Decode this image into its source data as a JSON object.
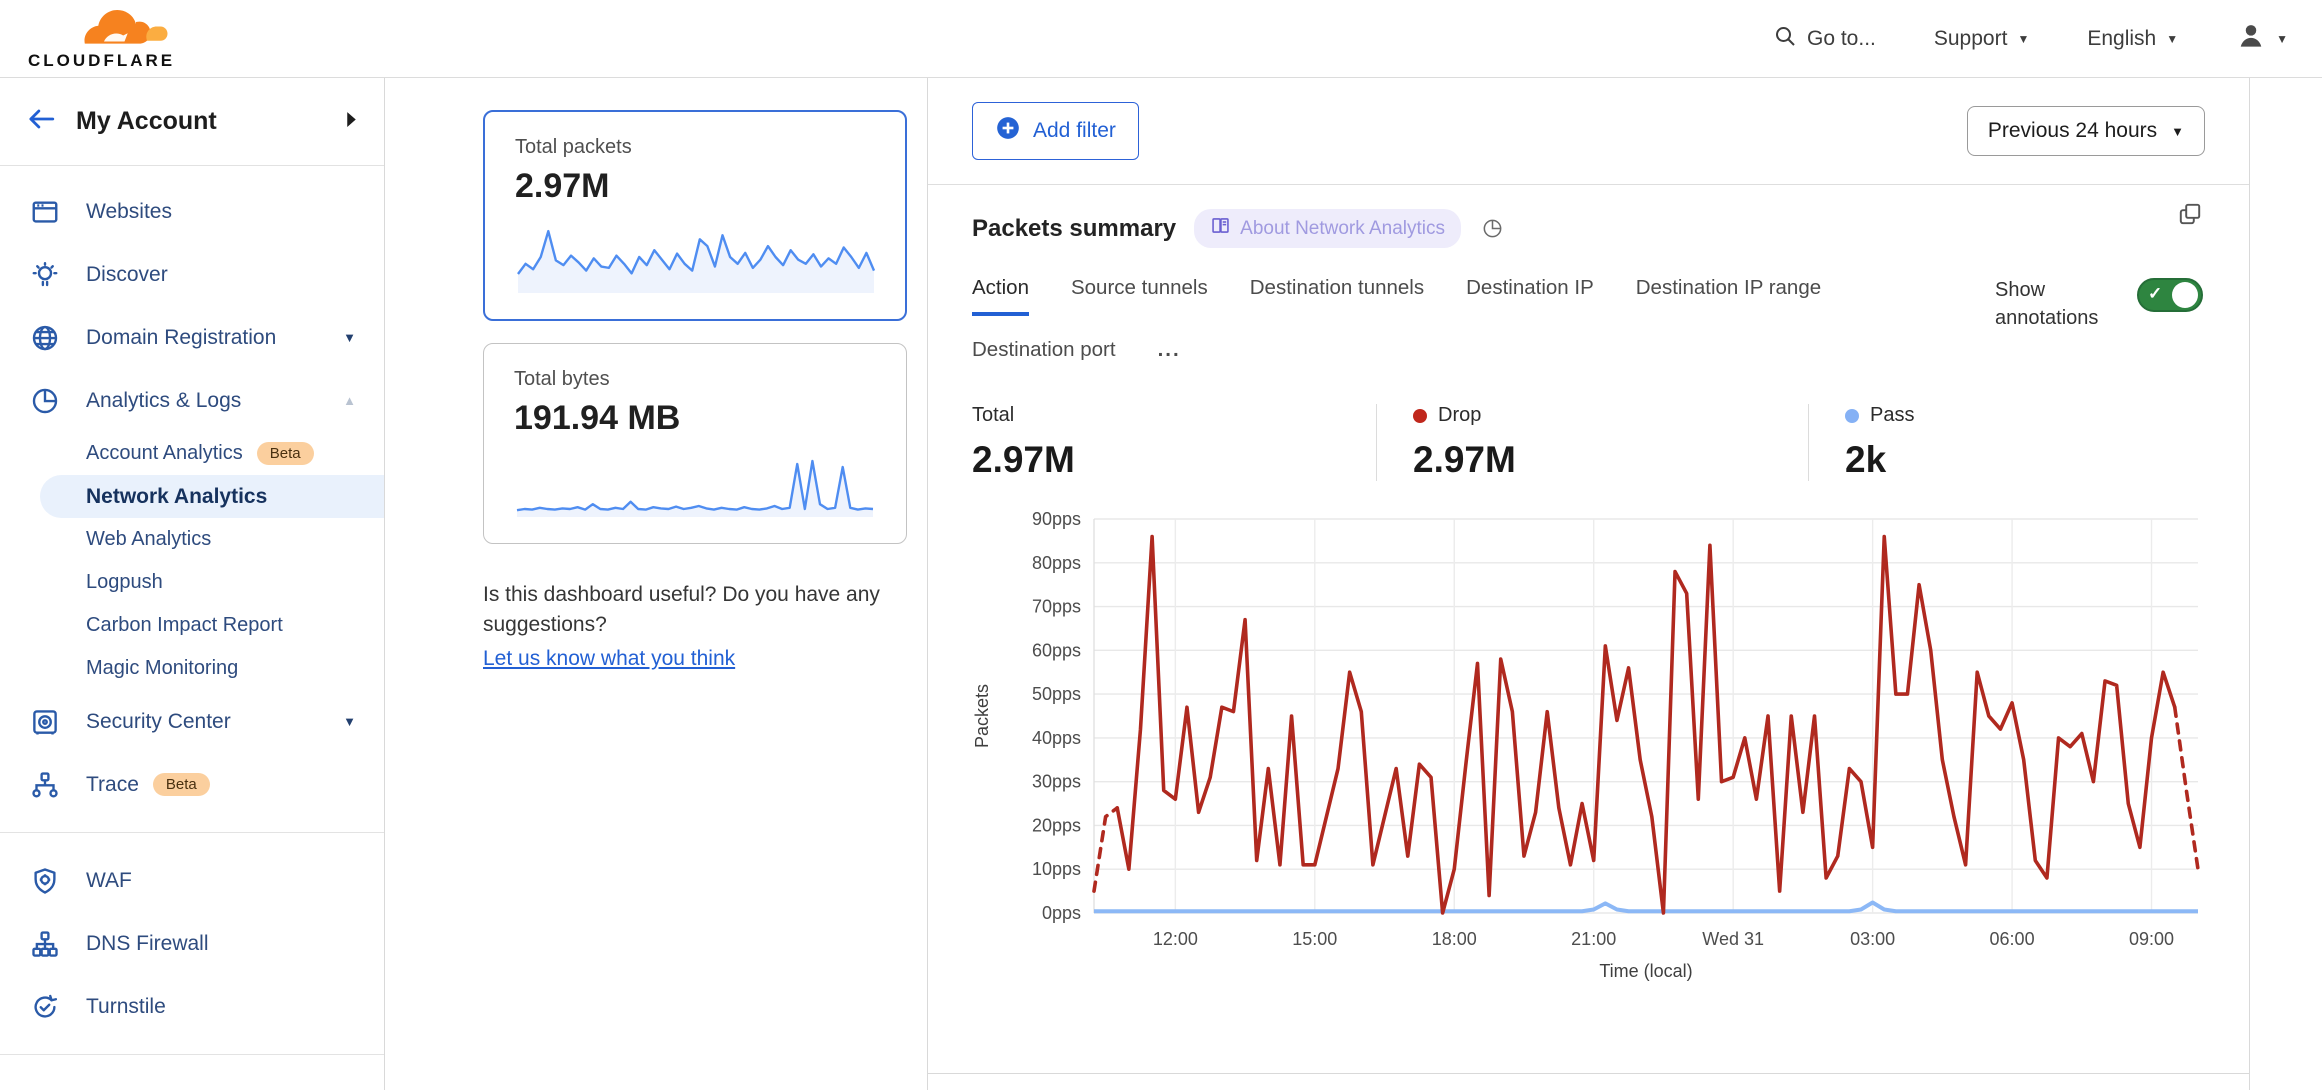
{
  "header": {
    "logo_text": "CLOUDFLARE",
    "search_label": "Go to...",
    "support_label": "Support",
    "language_label": "English"
  },
  "sidebar": {
    "account_label": "My Account",
    "beta_label": "Beta",
    "items": [
      {
        "type": "item",
        "label": "Websites",
        "icon": "browser"
      },
      {
        "type": "item",
        "label": "Discover",
        "icon": "lightbulb"
      },
      {
        "type": "item",
        "label": "Domain Registration",
        "icon": "globe",
        "chevron": "down"
      },
      {
        "type": "item",
        "label": "Analytics & Logs",
        "icon": "pie",
        "chevron": "up"
      },
      {
        "type": "sub",
        "label": "Account Analytics",
        "beta": true
      },
      {
        "type": "sub",
        "label": "Network Analytics",
        "active": true
      },
      {
        "type": "sub",
        "label": "Web Analytics"
      },
      {
        "type": "sub",
        "label": "Logpush"
      },
      {
        "type": "sub",
        "label": "Carbon Impact Report"
      },
      {
        "type": "sub",
        "label": "Magic Monitoring"
      },
      {
        "type": "item",
        "label": "Security Center",
        "icon": "safe",
        "chevron": "down"
      },
      {
        "type": "item",
        "label": "Trace",
        "icon": "trace",
        "beta": true
      },
      {
        "type": "divider"
      },
      {
        "type": "item",
        "label": "WAF",
        "icon": "shield"
      },
      {
        "type": "item",
        "label": "DNS Firewall",
        "icon": "dns"
      },
      {
        "type": "item",
        "label": "Turnstile",
        "icon": "turnstile"
      },
      {
        "type": "divider"
      },
      {
        "type": "item",
        "label": "",
        "icon": "spark",
        "partial": true
      }
    ]
  },
  "summary_cards": [
    {
      "title": "Total packets",
      "value": "2.97M",
      "selected": true
    },
    {
      "title": "Total bytes",
      "value": "191.94 MB",
      "selected": false
    }
  ],
  "feedback": {
    "question": "Is this dashboard useful? Do you have any suggestions?",
    "link": "Let us know what you think"
  },
  "main": {
    "add_filter_label": "Add filter",
    "time_range_label": "Previous 24 hours",
    "panel": {
      "title": "Packets summary",
      "about_badge": "About Network Analytics",
      "show_annotations_label": "Show annotations",
      "tabs": [
        "Action",
        "Source tunnels",
        "Destination tunnels",
        "Destination IP",
        "Destination IP range",
        "Destination port"
      ],
      "active_tab": "Action",
      "tabs_overflow": "...",
      "totals": [
        {
          "label": "Total",
          "value": "2.97M",
          "dot_color": ""
        },
        {
          "label": "Drop",
          "value": "2.97M",
          "dot_color": "#c0271c"
        },
        {
          "label": "Pass",
          "value": "2k",
          "dot_color": "#85b1f5"
        }
      ]
    }
  },
  "colors": {
    "accent_blue": "#2260d4",
    "drop_red": "#b0291f",
    "pass_blue": "#8cb8f6",
    "toggle_green": "#2e8540",
    "selected_card_border": "#3a6fd8",
    "beta_badge_bg": "#fbcf9e",
    "about_pill_bg": "#eeecfb"
  },
  "chart_data": [
    {
      "id": "packets_summary",
      "type": "line",
      "title": "Packets summary",
      "xlabel": "Time (local)",
      "ylabel": "Packets",
      "ylim": [
        0,
        90
      ],
      "grid": true,
      "y_ticks": [
        "0pps",
        "10pps",
        "20pps",
        "30pps",
        "40pps",
        "50pps",
        "60pps",
        "70pps",
        "80pps",
        "90pps"
      ],
      "x_tick_labels": [
        "12:00",
        "15:00",
        "18:00",
        "21:00",
        "Wed 31",
        "03:00",
        "06:00",
        "09:00"
      ],
      "x_tick_indices": [
        7,
        19,
        31,
        43,
        55,
        67,
        79,
        91
      ],
      "series": [
        {
          "name": "Drop",
          "color": "#b0291f",
          "dashed_head": 2,
          "dashed_tail": 2,
          "values": [
            5,
            22,
            24,
            10,
            42,
            86,
            28,
            26,
            47,
            23,
            31,
            47,
            46,
            67,
            12,
            33,
            11,
            45,
            11,
            11,
            22,
            33,
            55,
            46,
            11,
            22,
            33,
            13,
            34,
            31,
            0,
            10,
            34,
            57,
            4,
            58,
            46,
            13,
            23,
            46,
            24,
            11,
            25,
            12,
            61,
            44,
            56,
            35,
            22,
            0,
            78,
            73,
            26,
            84,
            30,
            31,
            40,
            26,
            45,
            5,
            45,
            23,
            45,
            8,
            13,
            33,
            30,
            15,
            86,
            50,
            50,
            75,
            60,
            35,
            22,
            11,
            55,
            45,
            42,
            48,
            35,
            12,
            8,
            40,
            38,
            41,
            30,
            53,
            52,
            25,
            15,
            40,
            55,
            47,
            28,
            10
          ]
        },
        {
          "name": "Pass",
          "color": "#8cb8f6",
          "values": [
            0.4,
            0.4,
            0.4,
            0.4,
            0.4,
            0.4,
            0.4,
            0.4,
            0.4,
            0.4,
            0.4,
            0.4,
            0.4,
            0.4,
            0.4,
            0.4,
            0.4,
            0.4,
            0.4,
            0.4,
            0.4,
            0.4,
            0.4,
            0.4,
            0.4,
            0.4,
            0.4,
            0.4,
            0.4,
            0.4,
            0.4,
            0.4,
            0.4,
            0.4,
            0.4,
            0.4,
            0.4,
            0.4,
            0.4,
            0.4,
            0.4,
            0.4,
            0.4,
            0.8,
            2.2,
            0.8,
            0.4,
            0.4,
            0.4,
            0.4,
            0.4,
            0.4,
            0.4,
            0.4,
            0.4,
            0.4,
            0.4,
            0.4,
            0.4,
            0.4,
            0.4,
            0.4,
            0.4,
            0.4,
            0.4,
            0.4,
            0.8,
            2.4,
            0.8,
            0.4,
            0.4,
            0.4,
            0.4,
            0.4,
            0.4,
            0.4,
            0.4,
            0.4,
            0.4,
            0.4,
            0.4,
            0.4,
            0.4,
            0.4,
            0.4,
            0.4,
            0.4,
            0.4,
            0.4,
            0.4,
            0.4,
            0.4,
            0.4,
            0.4,
            0.4,
            0.4
          ]
        }
      ]
    },
    {
      "id": "total_packets_sparkline",
      "type": "area",
      "title": "Total packets",
      "color": "#4f8df1",
      "values": [
        25,
        40,
        32,
        50,
        88,
        45,
        38,
        52,
        42,
        30,
        48,
        36,
        34,
        52,
        40,
        26,
        50,
        38,
        60,
        46,
        32,
        55,
        40,
        30,
        76,
        66,
        36,
        82,
        50,
        40,
        56,
        34,
        46,
        66,
        50,
        38,
        60,
        46,
        40,
        54,
        36,
        48,
        40,
        64,
        50,
        34,
        56,
        30
      ]
    },
    {
      "id": "total_bytes_sparkline",
      "type": "area",
      "title": "Total bytes",
      "color": "#4f8df1",
      "values": [
        8,
        10,
        9,
        12,
        10,
        9,
        11,
        10,
        13,
        9,
        18,
        10,
        9,
        12,
        10,
        22,
        10,
        9,
        13,
        11,
        10,
        14,
        10,
        12,
        15,
        11,
        9,
        12,
        10,
        9,
        13,
        10,
        9,
        11,
        15,
        10,
        12,
        85,
        10,
        90,
        18,
        10,
        12,
        80,
        12,
        9,
        11,
        10
      ]
    }
  ]
}
